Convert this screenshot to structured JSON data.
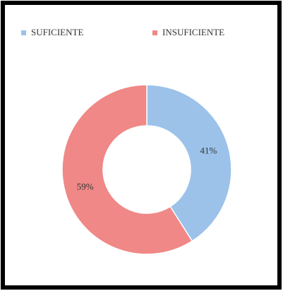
{
  "chart_data": {
    "type": "donut",
    "categories": [
      "SUFICIENTE",
      "INSUFICIENTE"
    ],
    "values": [
      41,
      59
    ],
    "value_labels": [
      "41%",
      "59%"
    ],
    "colors": [
      "#9cc2ea",
      "#ef8886"
    ],
    "legend": "top"
  }
}
